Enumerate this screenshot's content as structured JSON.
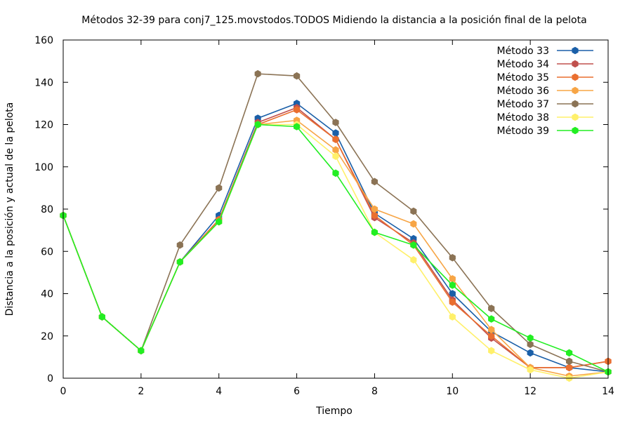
{
  "chart_data": {
    "type": "line",
    "title": "Métodos 32-39 para conj7_125.movstodos.TODOS Midiendo la distancia a la posición final de la pelota",
    "xlabel": "Tiempo",
    "ylabel": "Distancia a la posición y actual de la pelota",
    "xlim": [
      0,
      14
    ],
    "ylim": [
      0,
      160
    ],
    "xticks": [
      0,
      2,
      4,
      6,
      8,
      10,
      12,
      14
    ],
    "yticks": [
      0,
      20,
      40,
      60,
      80,
      100,
      120,
      140,
      160
    ],
    "grid": false,
    "legend_position": "top-right",
    "x": [
      0,
      1,
      2,
      3,
      4,
      5,
      6,
      7,
      8,
      9,
      10,
      11,
      12,
      13,
      14
    ],
    "series": [
      {
        "name": "Método 33",
        "color": "#1a5fa8",
        "values": [
          77,
          29,
          13,
          55,
          77,
          123,
          130,
          116,
          78,
          66,
          40,
          22,
          12,
          5,
          3
        ]
      },
      {
        "name": "Método 34",
        "color": "#c0504d",
        "values": [
          77,
          29,
          13,
          55,
          75,
          121,
          128,
          113,
          76,
          64,
          37,
          19,
          5,
          5,
          8
        ]
      },
      {
        "name": "Método 35",
        "color": "#ea6f2f",
        "values": [
          77,
          29,
          13,
          55,
          75,
          120,
          127,
          113,
          77,
          63,
          36,
          20,
          5,
          5,
          8
        ]
      },
      {
        "name": "Método 36",
        "color": "#f7a545",
        "values": [
          77,
          29,
          13,
          55,
          74,
          120,
          122,
          108,
          80,
          73,
          47,
          23,
          5,
          1,
          3
        ]
      },
      {
        "name": "Método 37",
        "color": "#8b7355",
        "values": [
          77,
          29,
          13,
          63,
          90,
          144,
          143,
          121,
          93,
          79,
          57,
          33,
          16,
          8,
          3
        ]
      },
      {
        "name": "Método 38",
        "color": "#fff06a",
        "values": [
          77,
          29,
          13,
          55,
          74,
          120,
          120,
          105,
          69,
          56,
          29,
          13,
          4,
          0,
          3
        ]
      },
      {
        "name": "Método 39",
        "color": "#22ee22",
        "values": [
          77,
          29,
          13,
          55,
          74,
          120,
          119,
          97,
          69,
          63,
          44,
          28,
          19,
          12,
          3
        ]
      }
    ]
  }
}
